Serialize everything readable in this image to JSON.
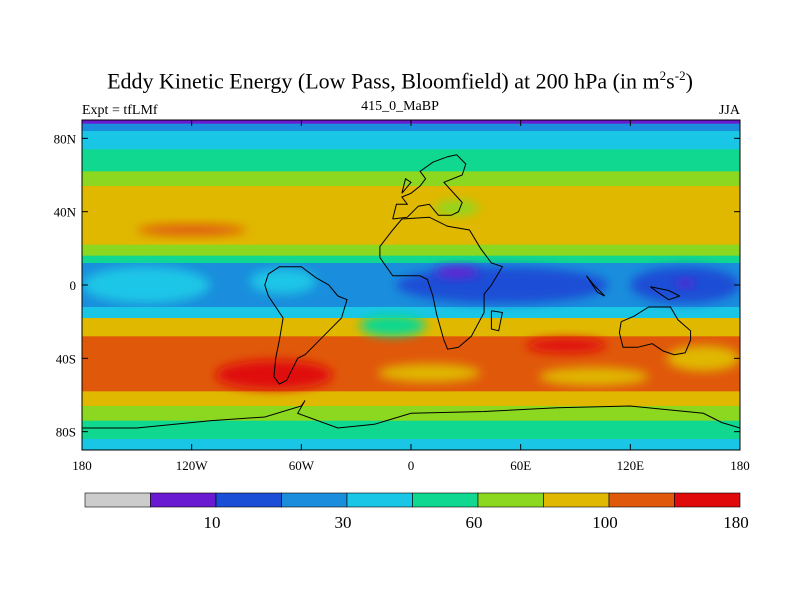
{
  "chart_data": {
    "type": "heatmap",
    "title": {
      "main": "Eddy Kinetic Energy (Low Pass, Bloomfield) at 200 hPa (in m",
      "sup1": "2",
      "mid": "s",
      "sup2": "-2",
      "end": ")"
    },
    "left_label": "Expt = tfLMf",
    "center_label": "415_0_MaBP",
    "right_label": "JJA",
    "x_ticks": [
      "180",
      "120W",
      "60W",
      "0",
      "60E",
      "120E",
      "180"
    ],
    "x_tick_values": [
      -180,
      -120,
      -60,
      0,
      60,
      120,
      180
    ],
    "y_ticks": [
      "80N",
      "40N",
      "0",
      "40S",
      "80S"
    ],
    "y_tick_values": [
      80,
      40,
      0,
      -40,
      -80
    ],
    "xlim": [
      -180,
      180
    ],
    "ylim": [
      -90,
      90
    ],
    "colorbar": {
      "colors": [
        "#cccccc",
        "#6a1ad0",
        "#1a4ed6",
        "#1a8edc",
        "#1ac6e6",
        "#10d890",
        "#8cd820",
        "#e0b800",
        "#e0580a",
        "#e00a0a"
      ],
      "labels": [
        "10",
        "30",
        "60",
        "100",
        "180"
      ],
      "label_after_box": [
        1,
        3,
        5,
        7,
        9
      ]
    },
    "zonal_bands": [
      {
        "lat_top": 90,
        "lat_bottom": 88,
        "level": 1
      },
      {
        "lat_top": 88,
        "lat_bottom": 84,
        "level": 3
      },
      {
        "lat_top": 84,
        "lat_bottom": 74,
        "level": 4
      },
      {
        "lat_top": 74,
        "lat_bottom": 62,
        "level": 5
      },
      {
        "lat_top": 62,
        "lat_bottom": 54,
        "level": 6
      },
      {
        "lat_top": 54,
        "lat_bottom": 22,
        "level": 7
      },
      {
        "lat_top": 22,
        "lat_bottom": 16,
        "level": 6
      },
      {
        "lat_top": 16,
        "lat_bottom": 12,
        "level": 5
      },
      {
        "lat_top": 12,
        "lat_bottom": -12,
        "level": 3
      },
      {
        "lat_top": -12,
        "lat_bottom": -18,
        "level": 4
      },
      {
        "lat_top": -18,
        "lat_bottom": -28,
        "level": 7
      },
      {
        "lat_top": -28,
        "lat_bottom": -58,
        "level": 8
      },
      {
        "lat_top": -58,
        "lat_bottom": -66,
        "level": 7
      },
      {
        "lat_top": -66,
        "lat_bottom": -74,
        "level": 6
      },
      {
        "lat_top": -74,
        "lat_bottom": -84,
        "level": 5
      },
      {
        "lat_top": -84,
        "lat_bottom": -90,
        "level": 4
      }
    ],
    "anomalies": [
      {
        "lon": -120,
        "lat": 30,
        "dlon": 30,
        "dlat": 3,
        "level": 8
      },
      {
        "lon": 25,
        "lat": 42,
        "dlon": 12,
        "dlat": 4,
        "level": 6
      },
      {
        "lon": -145,
        "lat": 0,
        "dlon": 35,
        "dlat": 10,
        "level": 4
      },
      {
        "lon": -70,
        "lat": 2,
        "dlon": 18,
        "dlat": 7,
        "level": 4
      },
      {
        "lon": 50,
        "lat": 0,
        "dlon": 58,
        "dlat": 10,
        "level": 2
      },
      {
        "lon": 25,
        "lat": 7,
        "dlon": 12,
        "dlat": 3,
        "level": 1
      },
      {
        "lon": 150,
        "lat": 0,
        "dlon": 30,
        "dlat": 10,
        "level": 2
      },
      {
        "lon": 150,
        "lat": 1,
        "dlon": 5,
        "dlat": 2,
        "level": 1
      },
      {
        "lon": -10,
        "lat": -22,
        "dlon": 18,
        "dlat": 6,
        "level": 5
      },
      {
        "lon": -75,
        "lat": -49,
        "dlon": 32,
        "dlat": 8,
        "level": 9
      },
      {
        "lon": 85,
        "lat": -33,
        "dlon": 22,
        "dlat": 4,
        "level": 9
      },
      {
        "lon": 10,
        "lat": -48,
        "dlon": 28,
        "dlat": 5,
        "level": 7
      },
      {
        "lon": 100,
        "lat": -50,
        "dlon": 30,
        "dlat": 5,
        "level": 7
      },
      {
        "lon": 160,
        "lat": -40,
        "dlon": 20,
        "dlat": 7,
        "level": 7
      }
    ],
    "coastlines": [
      [
        [
          -40,
          -6
        ],
        [
          -35,
          -8
        ],
        [
          -38,
          -18
        ],
        [
          -42,
          -22
        ],
        [
          -48,
          -28
        ],
        [
          -52,
          -32
        ],
        [
          -58,
          -38
        ],
        [
          -62,
          -40
        ],
        [
          -65,
          -46
        ],
        [
          -68,
          -52
        ],
        [
          -72,
          -54
        ],
        [
          -75,
          -50
        ],
        [
          -74,
          -40
        ],
        [
          -72,
          -30
        ],
        [
          -70,
          -18
        ],
        [
          -78,
          -6
        ],
        [
          -80,
          0
        ],
        [
          -78,
          6
        ],
        [
          -72,
          10
        ],
        [
          -60,
          10
        ],
        [
          -52,
          4
        ],
        [
          -45,
          0
        ],
        [
          -40,
          -6
        ]
      ],
      [
        [
          -17,
          15
        ],
        [
          -10,
          5
        ],
        [
          5,
          5
        ],
        [
          9,
          3
        ],
        [
          12,
          -6
        ],
        [
          14,
          -16
        ],
        [
          18,
          -30
        ],
        [
          20,
          -35
        ],
        [
          26,
          -34
        ],
        [
          33,
          -28
        ],
        [
          40,
          -15
        ],
        [
          40,
          -5
        ],
        [
          44,
          0
        ],
        [
          50,
          10
        ],
        [
          44,
          12
        ],
        [
          38,
          20
        ],
        [
          32,
          30
        ],
        [
          20,
          32
        ],
        [
          10,
          37
        ],
        [
          -5,
          36
        ],
        [
          -10,
          30
        ],
        [
          -17,
          21
        ],
        [
          -17,
          15
        ]
      ],
      [
        [
          44,
          -14
        ],
        [
          50,
          -15
        ],
        [
          48,
          -25
        ],
        [
          44,
          -24
        ],
        [
          44,
          -14
        ]
      ],
      [
        [
          115,
          -20
        ],
        [
          114,
          -26
        ],
        [
          116,
          -34
        ],
        [
          124,
          -34
        ],
        [
          132,
          -32
        ],
        [
          138,
          -36
        ],
        [
          144,
          -38
        ],
        [
          150,
          -37
        ],
        [
          153,
          -30
        ],
        [
          153,
          -25
        ],
        [
          146,
          -19
        ],
        [
          142,
          -12
        ],
        [
          137,
          -12
        ],
        [
          130,
          -12
        ],
        [
          122,
          -17
        ],
        [
          115,
          -20
        ]
      ],
      [
        [
          147,
          -6
        ],
        [
          141,
          -3
        ],
        [
          131,
          -1
        ],
        [
          135,
          -4
        ],
        [
          141,
          -8
        ],
        [
          147,
          -6
        ]
      ],
      [
        [
          96,
          5
        ],
        [
          100,
          0
        ],
        [
          106,
          -6
        ],
        [
          102,
          -4
        ],
        [
          96,
          5
        ]
      ],
      [
        [
          -10,
          36
        ],
        [
          -8,
          44
        ],
        [
          -2,
          44
        ],
        [
          -5,
          48
        ],
        [
          0,
          50
        ],
        [
          5,
          54
        ],
        [
          8,
          58
        ],
        [
          5,
          62
        ],
        [
          12,
          67
        ],
        [
          20,
          70
        ],
        [
          25,
          71
        ],
        [
          30,
          66
        ],
        [
          28,
          60
        ],
        [
          18,
          56
        ],
        [
          28,
          45
        ],
        [
          26,
          40
        ],
        [
          22,
          38
        ],
        [
          15,
          38
        ],
        [
          10,
          44
        ],
        [
          4,
          43
        ],
        [
          -2,
          37
        ],
        [
          -10,
          36
        ]
      ],
      [
        [
          -5,
          50
        ],
        [
          -3,
          58
        ],
        [
          0,
          56
        ],
        [
          -5,
          50
        ]
      ],
      [
        [
          -180,
          -78
        ],
        [
          -150,
          -78
        ],
        [
          -110,
          -74
        ],
        [
          -80,
          -72
        ],
        [
          -60,
          -66
        ],
        [
          -58,
          -63
        ],
        [
          -62,
          -70
        ],
        [
          -40,
          -78
        ],
        [
          -20,
          -76
        ],
        [
          0,
          -70
        ],
        [
          40,
          -69
        ],
        [
          80,
          -67
        ],
        [
          120,
          -66
        ],
        [
          160,
          -70
        ],
        [
          170,
          -75
        ],
        [
          180,
          -78
        ]
      ]
    ]
  }
}
